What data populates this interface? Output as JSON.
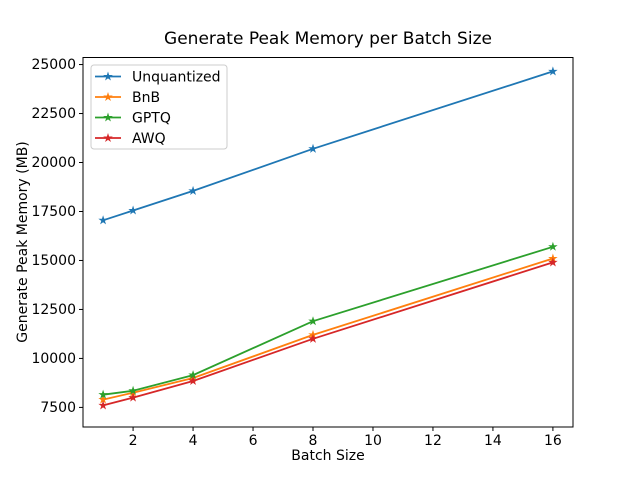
{
  "figure": {
    "background": "#ffffff",
    "text_color": "#000000",
    "spine_color": "#000000",
    "legend_border_color": "#cccccc"
  },
  "chart_data": {
    "type": "line",
    "title": "Generate Peak Memory per Batch Size",
    "xlabel": "Batch Size",
    "ylabel": "Generate Peak Memory (MB)",
    "x": [
      1,
      2,
      4,
      8,
      16
    ],
    "series": [
      {
        "name": "Unquantized",
        "color": "#1f77b4",
        "values": [
          17050,
          17550,
          18550,
          20700,
          24650
        ]
      },
      {
        "name": "BnB",
        "color": "#ff7f0e",
        "values": [
          7900,
          8250,
          9000,
          11200,
          15100
        ]
      },
      {
        "name": "GPTQ",
        "color": "#2ca02c",
        "values": [
          8150,
          8350,
          9150,
          11900,
          15700
        ]
      },
      {
        "name": "AWQ",
        "color": "#d62728",
        "values": [
          7600,
          8000,
          8850,
          11000,
          14900
        ]
      }
    ],
    "marker": "star",
    "xticks": [
      2,
      4,
      6,
      8,
      10,
      12,
      14,
      16
    ],
    "yticks": [
      7500,
      10000,
      12500,
      15000,
      17500,
      20000,
      22500,
      25000
    ],
    "xlim": [
      0.33,
      16.67
    ],
    "ylim": [
      6500,
      25360
    ],
    "grid": false,
    "legend": {
      "position": "upper-left",
      "entries": [
        "Unquantized",
        "BnB",
        "GPTQ",
        "AWQ"
      ]
    }
  }
}
